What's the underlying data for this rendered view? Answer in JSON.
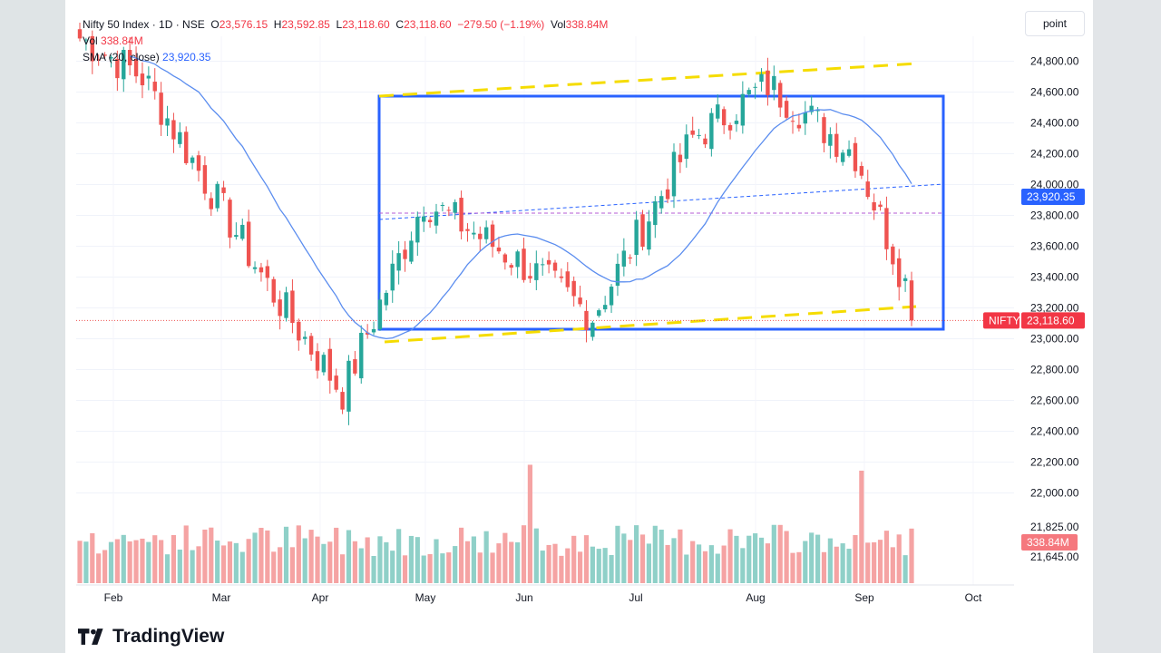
{
  "legend": {
    "symbol": "Nifty 50 Index · 1D · NSE",
    "o_label": "O",
    "o": "23,576.15",
    "h_label": "H",
    "h": "23,592.85",
    "l_label": "L",
    "l": "23,118.60",
    "c_label": "C",
    "c": "23,118.60",
    "change": "−279.50 (−1.19%)",
    "vol_label": "Vol",
    "vol": "338.84M",
    "vol_row_label": "Vol",
    "vol_row_value": "338.84M",
    "sma_label": "SMA (20, close)",
    "sma_value": "23,920.35"
  },
  "toolbar": {
    "scale_button": "point"
  },
  "brand": {
    "name": "TradingView"
  },
  "colors": {
    "up": "#26a69a",
    "down": "#ef5350",
    "sma": "#5b8def",
    "box": "#2962ff",
    "channel": "#f5dc00"
  },
  "chart_data": {
    "type": "candlestick",
    "x_labels": [
      "Feb",
      "Mar",
      "Apr",
      "May",
      "Jun",
      "Jul",
      "Aug",
      "Sep",
      "Oct"
    ],
    "price_ticks": [
      "24,800.00",
      "24,600.00",
      "24,400.00",
      "24,200.00",
      "24,000.00",
      "23,800.00",
      "23,600.00",
      "23,400.00",
      "23,200.00",
      "23,000.00",
      "22,800.00",
      "22,600.00",
      "22,400.00",
      "22,200.00",
      "22,000.00"
    ],
    "volume_ticks": [
      "21,825.00",
      "21,645.00"
    ],
    "badges": {
      "sma": "23,920.35",
      "symbol": "NIFTY",
      "last_price": "23,118.60",
      "volume": "338.84M"
    },
    "last_close": 23118.6,
    "sma_last": 23920.35,
    "series": [
      {
        "name": "Nifty 50 Index",
        "kind": "candles",
        "segments": [
          {
            "start": 0,
            "end": 10,
            "from": 24950,
            "to": 24700
          },
          {
            "start": 10,
            "end": 30,
            "from": 24700,
            "to": 23350
          },
          {
            "start": 30,
            "end": 42,
            "from": 23350,
            "to": 22650
          },
          {
            "start": 42,
            "end": 55,
            "from": 22650,
            "to": 23900
          },
          {
            "start": 55,
            "end": 72,
            "from": 23900,
            "to": 23450
          },
          {
            "start": 72,
            "end": 82,
            "from": 23450,
            "to": 23150
          },
          {
            "start": 82,
            "end": 98,
            "from": 23150,
            "to": 24300
          },
          {
            "start": 98,
            "end": 110,
            "from": 24300,
            "to": 24650
          },
          {
            "start": 110,
            "end": 124,
            "from": 24650,
            "to": 24200
          },
          {
            "start": 124,
            "end": 134,
            "from": 24200,
            "to": 23150
          }
        ]
      },
      {
        "name": "SMA (20, close)",
        "kind": "line"
      },
      {
        "name": "Vol",
        "kind": "volume"
      }
    ]
  }
}
